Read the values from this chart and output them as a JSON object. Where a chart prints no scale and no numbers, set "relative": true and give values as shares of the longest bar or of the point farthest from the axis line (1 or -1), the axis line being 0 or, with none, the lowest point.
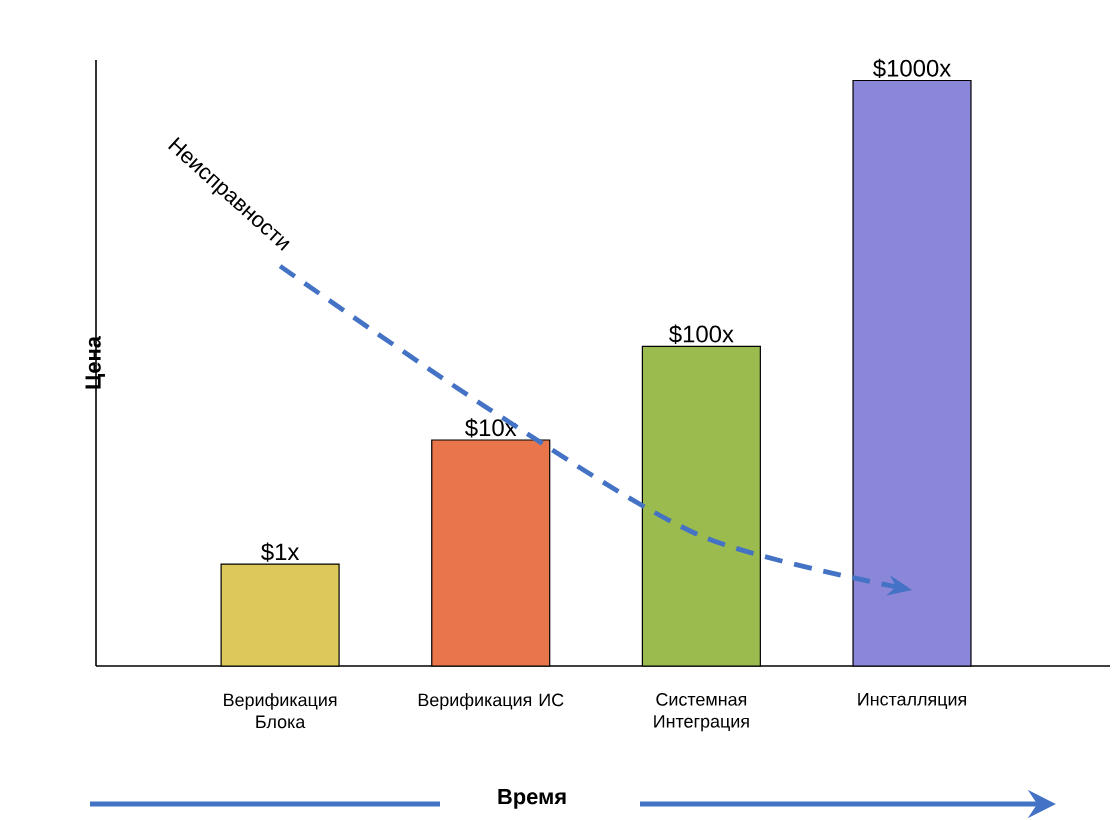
{
  "chart_data": {
    "type": "bar",
    "relative": true,
    "xlabel": "Время",
    "ylabel": "Цена",
    "categories": [
      "Верификация Блока",
      "Верификация ИС",
      "Системная Интеграция",
      "Инсталляция"
    ],
    "values": [
      0.174,
      0.386,
      0.546,
      1
    ],
    "colors": [
      "#dcc95a",
      "#e8764a",
      "#9bbb4f",
      "#8a86d8"
    ],
    "annotations": [
      {
        "text": "$1x",
        "x": "Верификация Блока",
        "y": 0.174
      },
      {
        "text": "$10x",
        "x": "Верификация ИС",
        "y": 0.386
      },
      {
        "text": "$100x",
        "x": "Системная Интеграция",
        "y": 0.546
      },
      {
        "text": "$1000x",
        "x": "Инсталляция",
        "y": 1
      }
    ],
    "series": [
      {
        "type": "line",
        "name": "Неисправности",
        "color": "#4472c4",
        "line_style": "dashed",
        "marker": "none",
        "values": [
          0.683,
          0.437,
          0.222,
          0.13
        ]
      }
    ]
  }
}
